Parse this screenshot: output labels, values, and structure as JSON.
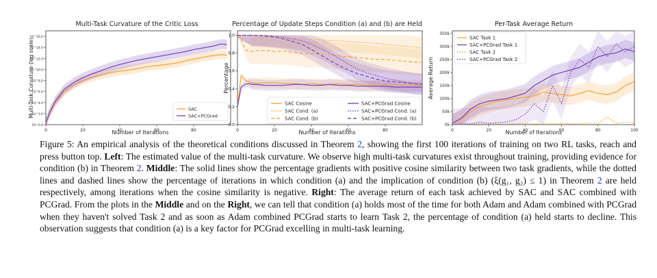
{
  "figure": {
    "left_panel": {
      "title": "Multi-Task Curvature of the Critic Loss",
      "xlabel": "Number of Iterations",
      "ylabel": "Multi-Task Curvature (log scale)",
      "xticks": [
        "0",
        "20",
        "40",
        "60",
        "80"
      ],
      "yticks": [
        "10^0.0",
        "10^2.0",
        "10^4.0",
        "10^6.0",
        "10^8.0",
        "10^10.0",
        "10^12.0",
        "10^14.0",
        "10^16.0"
      ],
      "legend": [
        "SAC",
        "SAC+PCGrad"
      ]
    },
    "middle_panel": {
      "title": "Percentage of Update Steps Condition (a) and (b) are Held",
      "xlabel": "Number of Iterations",
      "ylabel": "Percentage",
      "xticks": [
        "0",
        "20",
        "40",
        "60",
        "80"
      ],
      "yticks": [
        "0.0",
        "0.2",
        "0.4",
        "0.6",
        "0.8",
        "1.0"
      ],
      "legend": [
        "SAC Cosine",
        "SAC Cond. (a)",
        "SAC Cond. (b)",
        "SAC+PCGrad Cosine",
        "SAC+PCGrad Cond. (a)",
        "SAC+PCGrad Cond. (b)"
      ]
    },
    "right_panel": {
      "title": "Per-Task Average Return",
      "xlabel": "Number of Iterations",
      "ylabel": "Average Return",
      "xticks": [
        "0",
        "20",
        "40",
        "60",
        "80",
        "100"
      ],
      "yticks": [
        "0k",
        "50k",
        "100k",
        "150k",
        "200k",
        "250k",
        "300k",
        "350k"
      ],
      "legend": [
        "SAC Task 1",
        "SAC+PCGrad Task 1",
        "SAC Task 2",
        "SAC+PCGrad Task 2"
      ]
    },
    "colors": {
      "sac": "#f5a742",
      "pcgrad": "#7a4bbd"
    }
  },
  "chart_data": [
    {
      "type": "line",
      "title": "Multi-Task Curvature of the Critic Loss",
      "xlabel": "Number of Iterations",
      "ylabel": "Multi-Task Curvature (log scale)",
      "log_scale_y": true,
      "xlim": [
        0,
        100
      ],
      "ylim_log10": [
        0,
        17
      ],
      "x": [
        0,
        2,
        5,
        10,
        15,
        20,
        25,
        30,
        35,
        40,
        45,
        50,
        55,
        60,
        65,
        70,
        75,
        80,
        85,
        90,
        95,
        98
      ],
      "series": [
        {
          "name": "SAC",
          "log10_values": [
            0.3,
            2.0,
            4.0,
            6.0,
            7.2,
            8.0,
            8.6,
            9.0,
            9.4,
            9.7,
            9.9,
            10.2,
            10.5,
            10.7,
            10.9,
            11.1,
            11.5,
            11.9,
            12.2,
            12.5,
            12.7,
            12.6
          ]
        },
        {
          "name": "SAC+PCGrad",
          "log10_values": [
            0.3,
            2.2,
            4.2,
            6.4,
            7.6,
            8.5,
            9.2,
            9.8,
            10.4,
            10.9,
            11.3,
            11.7,
            12.0,
            12.3,
            12.6,
            12.9,
            13.2,
            13.6,
            13.9,
            14.2,
            14.6,
            14.5
          ]
        }
      ],
      "legend_position": "lower-right"
    },
    {
      "type": "line",
      "title": "Percentage of Update Steps Condition (a) and (b) are Held",
      "xlabel": "Number of Iterations",
      "ylabel": "Percentage",
      "xlim": [
        0,
        100
      ],
      "ylim": [
        0,
        1.05
      ],
      "x": [
        0,
        2,
        4,
        6,
        8,
        10,
        15,
        20,
        25,
        30,
        35,
        40,
        45,
        50,
        55,
        60,
        65,
        70,
        75,
        80,
        85,
        90,
        95,
        100
      ],
      "series": [
        {
          "name": "SAC Cosine",
          "values": [
            0.2,
            0.55,
            0.5,
            0.48,
            0.47,
            0.46,
            0.47,
            0.47,
            0.46,
            0.46,
            0.45,
            0.46,
            0.45,
            0.45,
            0.46,
            0.45,
            0.45,
            0.44,
            0.45,
            0.44,
            0.45,
            0.44,
            0.44,
            0.44
          ]
        },
        {
          "name": "SAC Cond. (a)",
          "values": [
            1.0,
            1.0,
            1.0,
            1.0,
            0.99,
            0.99,
            0.98,
            0.98,
            0.97,
            0.97,
            0.96,
            0.95,
            0.95,
            0.94,
            0.94,
            0.93,
            0.92,
            0.92,
            0.91,
            0.9,
            0.89,
            0.88,
            0.87,
            0.86
          ]
        },
        {
          "name": "SAC Cond. (b)",
          "values": [
            1.0,
            0.95,
            0.85,
            0.82,
            0.82,
            0.83,
            0.83,
            0.82,
            0.82,
            0.81,
            0.8,
            0.79,
            0.79,
            0.78,
            0.77,
            0.76,
            0.75,
            0.74,
            0.73,
            0.73,
            0.72,
            0.71,
            0.7,
            0.7
          ]
        },
        {
          "name": "SAC+PCGrad Cosine",
          "values": [
            0.2,
            0.42,
            0.45,
            0.46,
            0.45,
            0.45,
            0.44,
            0.44,
            0.44,
            0.45,
            0.45,
            0.44,
            0.44,
            0.45,
            0.44,
            0.44,
            0.43,
            0.43,
            0.43,
            0.43,
            0.42,
            0.42,
            0.42,
            0.42
          ]
        },
        {
          "name": "SAC+PCGrad Cond. (a)",
          "values": [
            1.0,
            1.0,
            1.0,
            1.0,
            1.0,
            1.0,
            1.0,
            0.99,
            0.98,
            0.96,
            0.94,
            0.9,
            0.85,
            0.8,
            0.74,
            0.68,
            0.62,
            0.58,
            0.55,
            0.52,
            0.5,
            0.48,
            0.46,
            0.45
          ]
        },
        {
          "name": "SAC+PCGrad Cond. (b)",
          "values": [
            1.0,
            1.0,
            1.0,
            1.0,
            1.0,
            1.0,
            0.99,
            0.98,
            0.96,
            0.93,
            0.9,
            0.84,
            0.78,
            0.72,
            0.66,
            0.61,
            0.57,
            0.54,
            0.51,
            0.49,
            0.48,
            0.47,
            0.46,
            0.45
          ]
        }
      ],
      "legend_position": "lower-center"
    },
    {
      "type": "line",
      "title": "Per-Task Average Return",
      "xlabel": "Number of Iterations",
      "ylabel": "Average Return",
      "xlim": [
        0,
        100
      ],
      "ylim": [
        0,
        360
      ],
      "y_unit": "k",
      "x": [
        0,
        5,
        10,
        15,
        20,
        25,
        30,
        35,
        40,
        45,
        50,
        55,
        60,
        65,
        70,
        75,
        80,
        85,
        90,
        95,
        100
      ],
      "series": [
        {
          "name": "SAC Task 1",
          "values": [
            5,
            20,
            50,
            70,
            80,
            90,
            95,
            100,
            105,
            110,
            125,
            120,
            115,
            110,
            120,
            130,
            120,
            115,
            125,
            150,
            165
          ]
        },
        {
          "name": "SAC+PCGrad Task 1",
          "values": [
            5,
            25,
            60,
            80,
            90,
            95,
            100,
            110,
            120,
            150,
            170,
            190,
            200,
            210,
            220,
            240,
            260,
            270,
            275,
            290,
            280
          ]
        },
        {
          "name": "SAC Task 2",
          "values": [
            0,
            2,
            3,
            3,
            5,
            3,
            2,
            5,
            4,
            3,
            5,
            4,
            5,
            3,
            4,
            6,
            5,
            30,
            5,
            10,
            6
          ]
        },
        {
          "name": "SAC+PCGrad Task 2",
          "values": [
            0,
            5,
            3,
            10,
            5,
            8,
            10,
            20,
            40,
            80,
            50,
            150,
            80,
            200,
            250,
            220,
            300,
            260,
            310,
            280,
            300
          ]
        }
      ],
      "legend_position": "upper-left"
    }
  ],
  "caption": {
    "lead": "Figure 5: An empirical analysis of the theoretical conditions discussed in Theorem",
    "ref_thm": "2",
    "p1": ", showing the first 100 iterations of training on two RL tasks, reach and press button top.",
    "left_label": "Left",
    "p2": ": The estimated value of the multi-task curvature. We observe high multi-task curvatures exist throughout training, providing evidence for condition (b) in Theorem",
    "p3": ".",
    "middle_label": "Middle",
    "p4": ": The solid lines show the percentage gradients with positive cosine similarity between two task gradients, while the dotted lines and dashed lines show the percentage of iterations in which condition (a) and the implication of condition (b) (ξ(g₁, g₂) ≤ 1) in Theorem",
    "p5": "are held respectively, among iterations when the cosine similarity is negative.",
    "right_label": "Right",
    "p6": ": The average return of each task achieved by SAC and SAC combined with PCGrad. From the plots in the",
    "p7": "and on the",
    "p8": ", we can tell that condition (a) holds most of the time for both Adam and Adam combined with PCGrad when they haven't solved Task 2 and as soon as Adam combined PCGrad starts to learn Task 2, the percentage of condition (a) held starts to decline. This observation suggests that condition (a) is a key factor for PCGrad excelling in multi-task learning."
  }
}
